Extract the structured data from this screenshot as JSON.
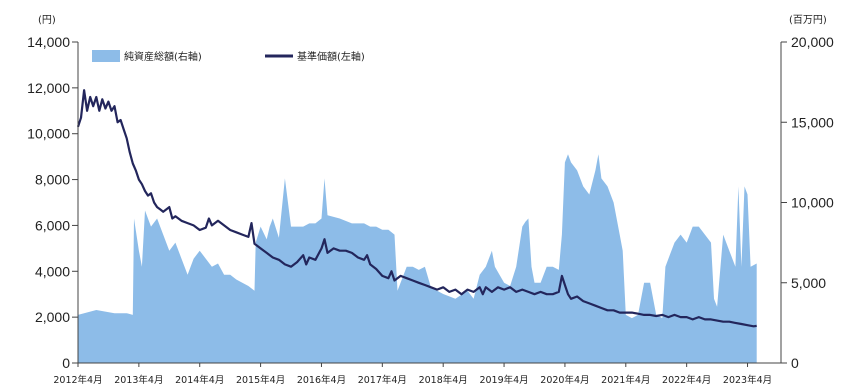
{
  "chart_data": {
    "type": "line",
    "left_axis_unit": "(円)",
    "right_axis_unit": "(百万円)",
    "left_ticks": [
      "0",
      "2,000",
      "4,000",
      "6,000",
      "8,000",
      "10,000",
      "12,000",
      "14,000"
    ],
    "right_ticks": [
      "0",
      "5,000",
      "10,000",
      "15,000",
      "20,000"
    ],
    "ylim_left": [
      0,
      14000
    ],
    "ylim_right": [
      0,
      20000
    ],
    "x_labels": [
      "2012年4月",
      "2013年4月",
      "2014年4月",
      "2015年4月",
      "2016年4月",
      "2017年4月",
      "2018年4月",
      "2019年4月",
      "2020年4月",
      "2021年4月",
      "2022年4月",
      "2023年4月"
    ],
    "legend": {
      "area_label": "純資産総額(右軸)",
      "line_label": "基準価額(左軸)"
    },
    "colors": {
      "area": "#8dbce8",
      "line": "#23265c"
    },
    "grid": false,
    "legend_position": "top-left",
    "series": [
      {
        "name": "純資産総額(右軸)",
        "axis": "right",
        "type": "area",
        "points": [
          [
            2012.0,
            3000
          ],
          [
            2012.3,
            3300
          ],
          [
            2012.6,
            3100
          ],
          [
            2012.8,
            3100
          ],
          [
            2012.9,
            3000
          ],
          [
            2012.92,
            9000
          ],
          [
            2013.0,
            7000
          ],
          [
            2013.05,
            6000
          ],
          [
            2013.1,
            9500
          ],
          [
            2013.2,
            8500
          ],
          [
            2013.3,
            9000
          ],
          [
            2013.4,
            8000
          ],
          [
            2013.5,
            7000
          ],
          [
            2013.6,
            7500
          ],
          [
            2013.7,
            6500
          ],
          [
            2013.8,
            5500
          ],
          [
            2013.9,
            6500
          ],
          [
            2014.0,
            7000
          ],
          [
            2014.1,
            6500
          ],
          [
            2014.2,
            6000
          ],
          [
            2014.3,
            6200
          ],
          [
            2014.4,
            5500
          ],
          [
            2014.5,
            5500
          ],
          [
            2014.6,
            5200
          ],
          [
            2014.7,
            5000
          ],
          [
            2014.8,
            4800
          ],
          [
            2014.9,
            4500
          ],
          [
            2014.92,
            7500
          ],
          [
            2015.0,
            8500
          ],
          [
            2015.1,
            7700
          ],
          [
            2015.15,
            8500
          ],
          [
            2015.2,
            9000
          ],
          [
            2015.3,
            7800
          ],
          [
            2015.4,
            11500
          ],
          [
            2015.5,
            8500
          ],
          [
            2015.6,
            8500
          ],
          [
            2015.7,
            8500
          ],
          [
            2015.8,
            8700
          ],
          [
            2015.9,
            8700
          ],
          [
            2016.0,
            9000
          ],
          [
            2016.05,
            11500
          ],
          [
            2016.1,
            9200
          ],
          [
            2016.3,
            9000
          ],
          [
            2016.5,
            8700
          ],
          [
            2016.7,
            8700
          ],
          [
            2016.8,
            8500
          ],
          [
            2016.9,
            8500
          ],
          [
            2017.0,
            8300
          ],
          [
            2017.1,
            8300
          ],
          [
            2017.2,
            8000
          ],
          [
            2017.25,
            4500
          ],
          [
            2017.4,
            6000
          ],
          [
            2017.5,
            6000
          ],
          [
            2017.6,
            5800
          ],
          [
            2017.7,
            6000
          ],
          [
            2017.8,
            4700
          ],
          [
            2017.9,
            4500
          ],
          [
            2018.0,
            4300
          ],
          [
            2018.2,
            4000
          ],
          [
            2018.4,
            4500
          ],
          [
            2018.5,
            4000
          ],
          [
            2018.6,
            5500
          ],
          [
            2018.7,
            6000
          ],
          [
            2018.8,
            7000
          ],
          [
            2018.85,
            6000
          ],
          [
            2019.0,
            5000
          ],
          [
            2019.1,
            4800
          ],
          [
            2019.2,
            6000
          ],
          [
            2019.3,
            8500
          ],
          [
            2019.35,
            8800
          ],
          [
            2019.4,
            9000
          ],
          [
            2019.45,
            6000
          ],
          [
            2019.5,
            5000
          ],
          [
            2019.6,
            5000
          ],
          [
            2019.7,
            6000
          ],
          [
            2019.8,
            6000
          ],
          [
            2019.9,
            5800
          ],
          [
            2019.95,
            8000
          ],
          [
            2020.0,
            12500
          ],
          [
            2020.05,
            13000
          ],
          [
            2020.1,
            12500
          ],
          [
            2020.2,
            12000
          ],
          [
            2020.3,
            11000
          ],
          [
            2020.4,
            10500
          ],
          [
            2020.5,
            12000
          ],
          [
            2020.55,
            13000
          ],
          [
            2020.6,
            11500
          ],
          [
            2020.7,
            11000
          ],
          [
            2020.8,
            10000
          ],
          [
            2020.9,
            8000
          ],
          [
            2020.95,
            7000
          ],
          [
            2021.0,
            3000
          ],
          [
            2021.1,
            2800
          ],
          [
            2021.2,
            3000
          ],
          [
            2021.3,
            5000
          ],
          [
            2021.4,
            5000
          ],
          [
            2021.5,
            3000
          ],
          [
            2021.6,
            2800
          ],
          [
            2021.65,
            6000
          ],
          [
            2021.7,
            6500
          ],
          [
            2021.8,
            7500
          ],
          [
            2021.9,
            8000
          ],
          [
            2022.0,
            7500
          ],
          [
            2022.1,
            8500
          ],
          [
            2022.2,
            8500
          ],
          [
            2022.3,
            8000
          ],
          [
            2022.4,
            7500
          ],
          [
            2022.45,
            4000
          ],
          [
            2022.5,
            3500
          ],
          [
            2022.6,
            8000
          ],
          [
            2022.7,
            7000
          ],
          [
            2022.8,
            6000
          ],
          [
            2022.85,
            11000
          ],
          [
            2022.9,
            6000
          ],
          [
            2022.95,
            11000
          ],
          [
            2023.0,
            10500
          ],
          [
            2023.05,
            6000
          ],
          [
            2023.15,
            6200
          ]
        ]
      },
      {
        "name": "基準価額(左軸)",
        "axis": "left",
        "type": "line",
        "points": [
          [
            2012.0,
            10300
          ],
          [
            2012.05,
            10700
          ],
          [
            2012.1,
            11900
          ],
          [
            2012.15,
            11000
          ],
          [
            2012.2,
            11600
          ],
          [
            2012.25,
            11200
          ],
          [
            2012.3,
            11600
          ],
          [
            2012.35,
            11000
          ],
          [
            2012.4,
            11500
          ],
          [
            2012.45,
            11100
          ],
          [
            2012.5,
            11400
          ],
          [
            2012.55,
            11000
          ],
          [
            2012.6,
            11200
          ],
          [
            2012.65,
            10500
          ],
          [
            2012.7,
            10600
          ],
          [
            2012.75,
            10200
          ],
          [
            2012.8,
            9800
          ],
          [
            2012.85,
            9200
          ],
          [
            2012.9,
            8700
          ],
          [
            2012.95,
            8400
          ],
          [
            2013.0,
            8000
          ],
          [
            2013.05,
            7800
          ],
          [
            2013.1,
            7500
          ],
          [
            2013.15,
            7300
          ],
          [
            2013.2,
            7400
          ],
          [
            2013.25,
            7000
          ],
          [
            2013.3,
            6800
          ],
          [
            2013.35,
            6700
          ],
          [
            2013.4,
            6600
          ],
          [
            2013.5,
            6800
          ],
          [
            2013.55,
            6300
          ],
          [
            2013.6,
            6400
          ],
          [
            2013.7,
            6200
          ],
          [
            2013.8,
            6100
          ],
          [
            2013.9,
            6000
          ],
          [
            2014.0,
            5800
          ],
          [
            2014.1,
            5900
          ],
          [
            2014.15,
            6300
          ],
          [
            2014.2,
            6000
          ],
          [
            2014.3,
            6200
          ],
          [
            2014.4,
            6000
          ],
          [
            2014.5,
            5800
          ],
          [
            2014.6,
            5700
          ],
          [
            2014.7,
            5600
          ],
          [
            2014.8,
            5500
          ],
          [
            2014.85,
            6100
          ],
          [
            2014.9,
            5200
          ],
          [
            2015.0,
            5000
          ],
          [
            2015.1,
            4800
          ],
          [
            2015.2,
            4600
          ],
          [
            2015.3,
            4500
          ],
          [
            2015.4,
            4300
          ],
          [
            2015.5,
            4200
          ],
          [
            2015.6,
            4400
          ],
          [
            2015.7,
            4700
          ],
          [
            2015.75,
            4300
          ],
          [
            2015.8,
            4600
          ],
          [
            2015.9,
            4500
          ],
          [
            2016.0,
            5000
          ],
          [
            2016.05,
            5400
          ],
          [
            2016.1,
            4800
          ],
          [
            2016.2,
            5000
          ],
          [
            2016.3,
            4900
          ],
          [
            2016.4,
            4900
          ],
          [
            2016.5,
            4800
          ],
          [
            2016.6,
            4600
          ],
          [
            2016.7,
            4500
          ],
          [
            2016.75,
            4700
          ],
          [
            2016.8,
            4300
          ],
          [
            2016.9,
            4100
          ],
          [
            2017.0,
            3800
          ],
          [
            2017.1,
            3700
          ],
          [
            2017.15,
            4000
          ],
          [
            2017.2,
            3600
          ],
          [
            2017.3,
            3800
          ],
          [
            2017.4,
            3700
          ],
          [
            2017.5,
            3600
          ],
          [
            2017.6,
            3500
          ],
          [
            2017.7,
            3400
          ],
          [
            2017.8,
            3300
          ],
          [
            2017.9,
            3200
          ],
          [
            2018.0,
            3300
          ],
          [
            2018.1,
            3100
          ],
          [
            2018.2,
            3200
          ],
          [
            2018.3,
            3000
          ],
          [
            2018.4,
            3200
          ],
          [
            2018.5,
            3100
          ],
          [
            2018.6,
            3300
          ],
          [
            2018.65,
            3000
          ],
          [
            2018.7,
            3300
          ],
          [
            2018.8,
            3100
          ],
          [
            2018.9,
            3300
          ],
          [
            2019.0,
            3200
          ],
          [
            2019.1,
            3300
          ],
          [
            2019.2,
            3100
          ],
          [
            2019.3,
            3200
          ],
          [
            2019.4,
            3100
          ],
          [
            2019.5,
            3000
          ],
          [
            2019.6,
            3100
          ],
          [
            2019.7,
            3000
          ],
          [
            2019.8,
            3000
          ],
          [
            2019.9,
            3100
          ],
          [
            2019.95,
            3800
          ],
          [
            2020.0,
            3400
          ],
          [
            2020.05,
            3000
          ],
          [
            2020.1,
            2800
          ],
          [
            2020.2,
            2900
          ],
          [
            2020.3,
            2700
          ],
          [
            2020.4,
            2600
          ],
          [
            2020.5,
            2500
          ],
          [
            2020.6,
            2400
          ],
          [
            2020.7,
            2300
          ],
          [
            2020.8,
            2300
          ],
          [
            2020.9,
            2200
          ],
          [
            2021.0,
            2200
          ],
          [
            2021.1,
            2200
          ],
          [
            2021.2,
            2150
          ],
          [
            2021.3,
            2100
          ],
          [
            2021.4,
            2100
          ],
          [
            2021.5,
            2050
          ],
          [
            2021.6,
            2100
          ],
          [
            2021.7,
            2000
          ],
          [
            2021.8,
            2100
          ],
          [
            2021.9,
            2000
          ],
          [
            2022.0,
            2000
          ],
          [
            2022.1,
            1900
          ],
          [
            2022.2,
            2000
          ],
          [
            2022.3,
            1900
          ],
          [
            2022.4,
            1900
          ],
          [
            2022.5,
            1850
          ],
          [
            2022.6,
            1800
          ],
          [
            2022.7,
            1800
          ],
          [
            2022.8,
            1750
          ],
          [
            2022.9,
            1700
          ],
          [
            2023.0,
            1650
          ],
          [
            2023.1,
            1600
          ],
          [
            2023.15,
            1620
          ]
        ]
      }
    ]
  }
}
